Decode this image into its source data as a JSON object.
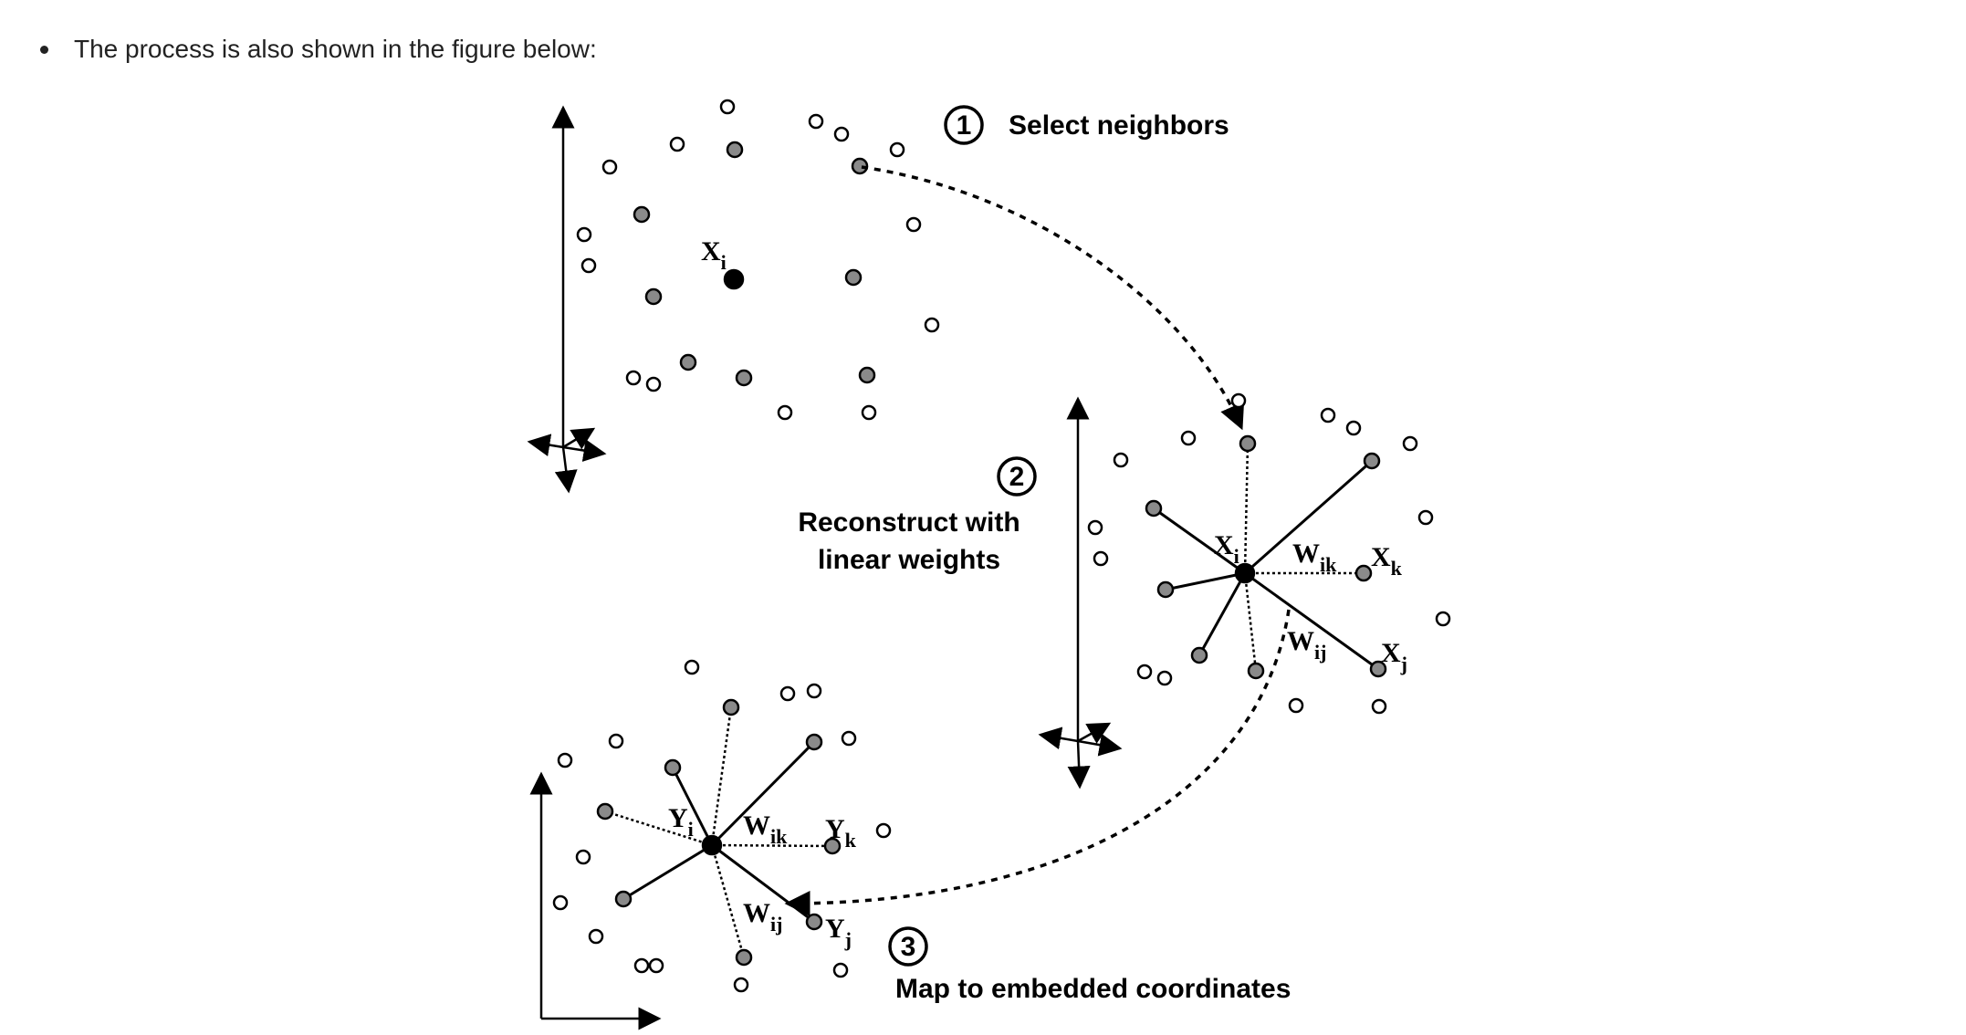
{
  "bullet": {
    "text": "The process is also shown in the figure below:"
  },
  "figure": {
    "step1": {
      "number": "1",
      "label": "Select neighbors"
    },
    "step2": {
      "number": "2",
      "label_line1": "Reconstruct with",
      "label_line2": "linear weights"
    },
    "step3": {
      "number": "3",
      "label": "Map to embedded coordinates"
    },
    "vars": {
      "x_base": "X",
      "x_i_sub": "i",
      "x_k_base": "X",
      "x_k_sub": "k",
      "x_j_base": "X",
      "x_j_sub": "j",
      "w_base": "W",
      "w_ik_sub": "ik",
      "w_ij_sub": "ij",
      "y_base": "Y",
      "y_i_sub": "i",
      "y_k_sub": "k",
      "y_j_sub": "j"
    },
    "colors": {
      "neighbor": "#8a8a8a",
      "center": "#000000",
      "other": "#ffffff",
      "stroke": "#000000"
    }
  }
}
